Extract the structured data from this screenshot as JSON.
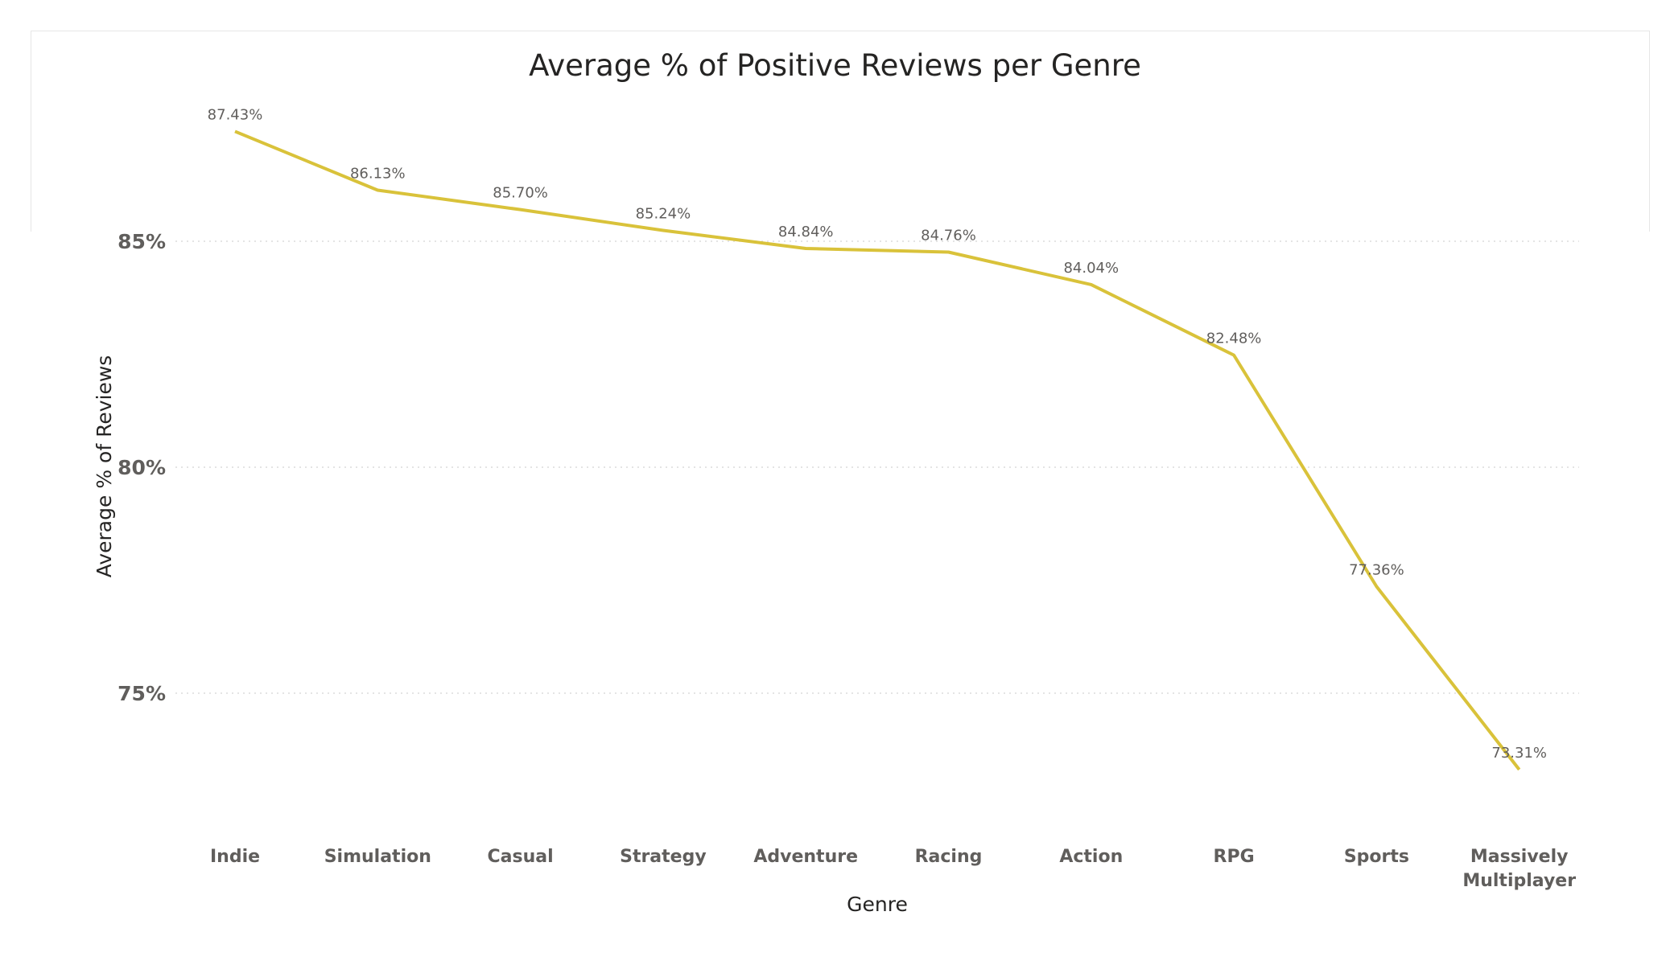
{
  "chart_data": {
    "type": "line",
    "title": "Average % of Positive Reviews per Genre",
    "xlabel": "Genre",
    "ylabel": "Average % of Reviews",
    "categories": [
      "Indie",
      "Simulation",
      "Casual",
      "Strategy",
      "Adventure",
      "Racing",
      "Action",
      "RPG",
      "Sports",
      "Massively Multiplayer"
    ],
    "values": [
      87.43,
      86.13,
      85.7,
      85.24,
      84.84,
      84.76,
      84.04,
      82.48,
      77.36,
      73.31
    ],
    "value_labels": [
      "87.43%",
      "86.13%",
      "85.70%",
      "85.24%",
      "84.84%",
      "84.76%",
      "84.04%",
      "82.48%",
      "77.36%",
      "73.31%"
    ],
    "yticks": [
      75,
      80,
      85
    ],
    "ytick_labels": [
      "75%",
      "80%",
      "85%"
    ],
    "grid": true,
    "line_color": "#d9c23a",
    "grid_color": "#dcdcdc"
  }
}
